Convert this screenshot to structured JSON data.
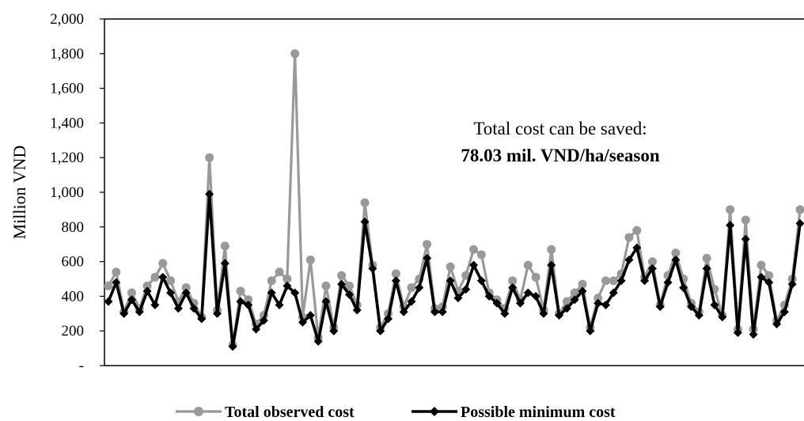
{
  "chart_data": {
    "type": "line",
    "title": "",
    "xlabel": "",
    "ylabel": "Million VND",
    "ylim": [
      0,
      2000
    ],
    "yticks": [
      {
        "value": 0,
        "label": "-"
      },
      {
        "value": 200,
        "label": "200"
      },
      {
        "value": 400,
        "label": "400"
      },
      {
        "value": 600,
        "label": "600"
      },
      {
        "value": 800,
        "label": "800"
      },
      {
        "value": 1000,
        "label": "1,000"
      },
      {
        "value": 1200,
        "label": "1,200"
      },
      {
        "value": 1400,
        "label": "1,400"
      },
      {
        "value": 1600,
        "label": "1,600"
      },
      {
        "value": 1800,
        "label": "1,800"
      },
      {
        "value": 2000,
        "label": "2,000"
      }
    ],
    "grid": false,
    "legend_position": "bottom",
    "annotation": {
      "line1": "Total cost can be saved:",
      "line2": "78.03 mil. VND/ha/season"
    },
    "series": [
      {
        "name": "Total observed cost",
        "color": "#999999",
        "marker": "circle",
        "values": [
          460,
          540,
          310,
          420,
          330,
          460,
          510,
          590,
          490,
          370,
          450,
          360,
          280,
          1200,
          320,
          690,
          120,
          430,
          380,
          240,
          290,
          490,
          540,
          500,
          1800,
          280,
          610,
          160,
          460,
          220,
          520,
          460,
          350,
          940,
          580,
          220,
          300,
          530,
          340,
          450,
          500,
          700,
          330,
          340,
          570,
          430,
          520,
          670,
          640,
          420,
          380,
          330,
          490,
          380,
          580,
          510,
          320,
          670,
          300,
          370,
          420,
          470,
          220,
          390,
          490,
          490,
          530,
          740,
          780,
          510,
          600,
          350,
          520,
          650,
          500,
          360,
          310,
          620,
          440,
          290,
          900,
          210,
          840,
          210,
          580,
          520,
          260,
          350,
          500,
          900
        ]
      },
      {
        "name": "Possible minimum cost",
        "color": "#000000",
        "marker": "diamond",
        "values": [
          370,
          480,
          300,
          380,
          310,
          430,
          350,
          510,
          420,
          330,
          420,
          330,
          270,
          990,
          300,
          590,
          110,
          370,
          350,
          210,
          260,
          420,
          350,
          460,
          420,
          250,
          290,
          140,
          370,
          200,
          470,
          410,
          320,
          830,
          560,
          200,
          270,
          490,
          310,
          370,
          450,
          620,
          310,
          310,
          490,
          390,
          440,
          580,
          490,
          400,
          360,
          300,
          450,
          360,
          420,
          400,
          300,
          580,
          290,
          330,
          380,
          430,
          200,
          360,
          350,
          420,
          490,
          610,
          680,
          490,
          560,
          340,
          480,
          610,
          450,
          340,
          290,
          560,
          350,
          280,
          810,
          190,
          730,
          180,
          510,
          480,
          240,
          310,
          470,
          820
        ]
      }
    ]
  }
}
